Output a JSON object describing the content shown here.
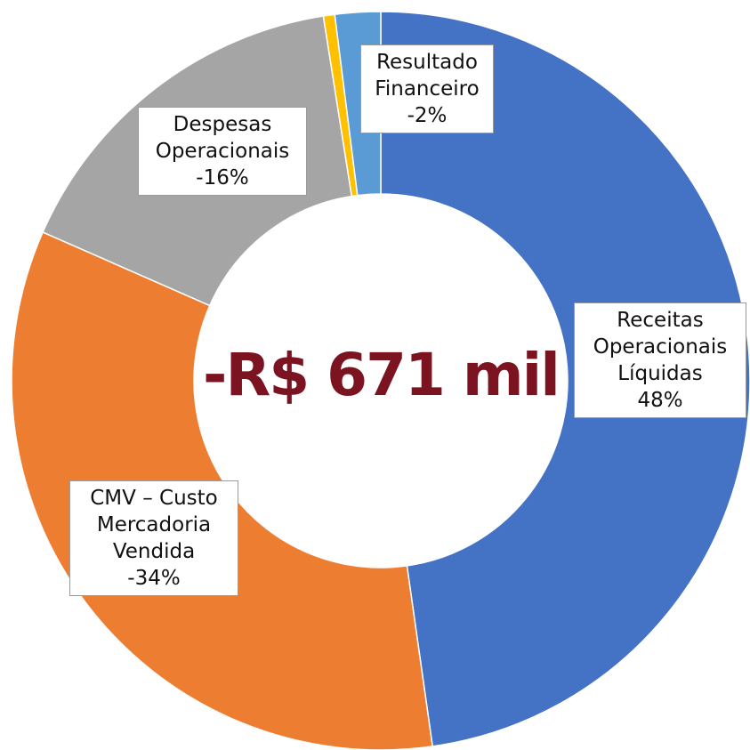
{
  "chart_data": {
    "type": "pie",
    "donut": true,
    "center_text": "-R$ 671 mil",
    "categories": [
      "Receitas Operacionais Líquidas",
      "CMV – Custo Mercadoria Vendida",
      "Despesas Operacionais",
      null,
      "Resultado Financeiro"
    ],
    "values": [
      48,
      -34,
      -16,
      0.5,
      -2
    ],
    "value_labels": [
      "48%",
      "-34%",
      "-16%",
      null,
      "-2%"
    ],
    "colors": [
      "#4472c4",
      "#ed7d31",
      "#a5a5a5",
      "#ffc000",
      "#5b9bd5"
    ]
  }
}
